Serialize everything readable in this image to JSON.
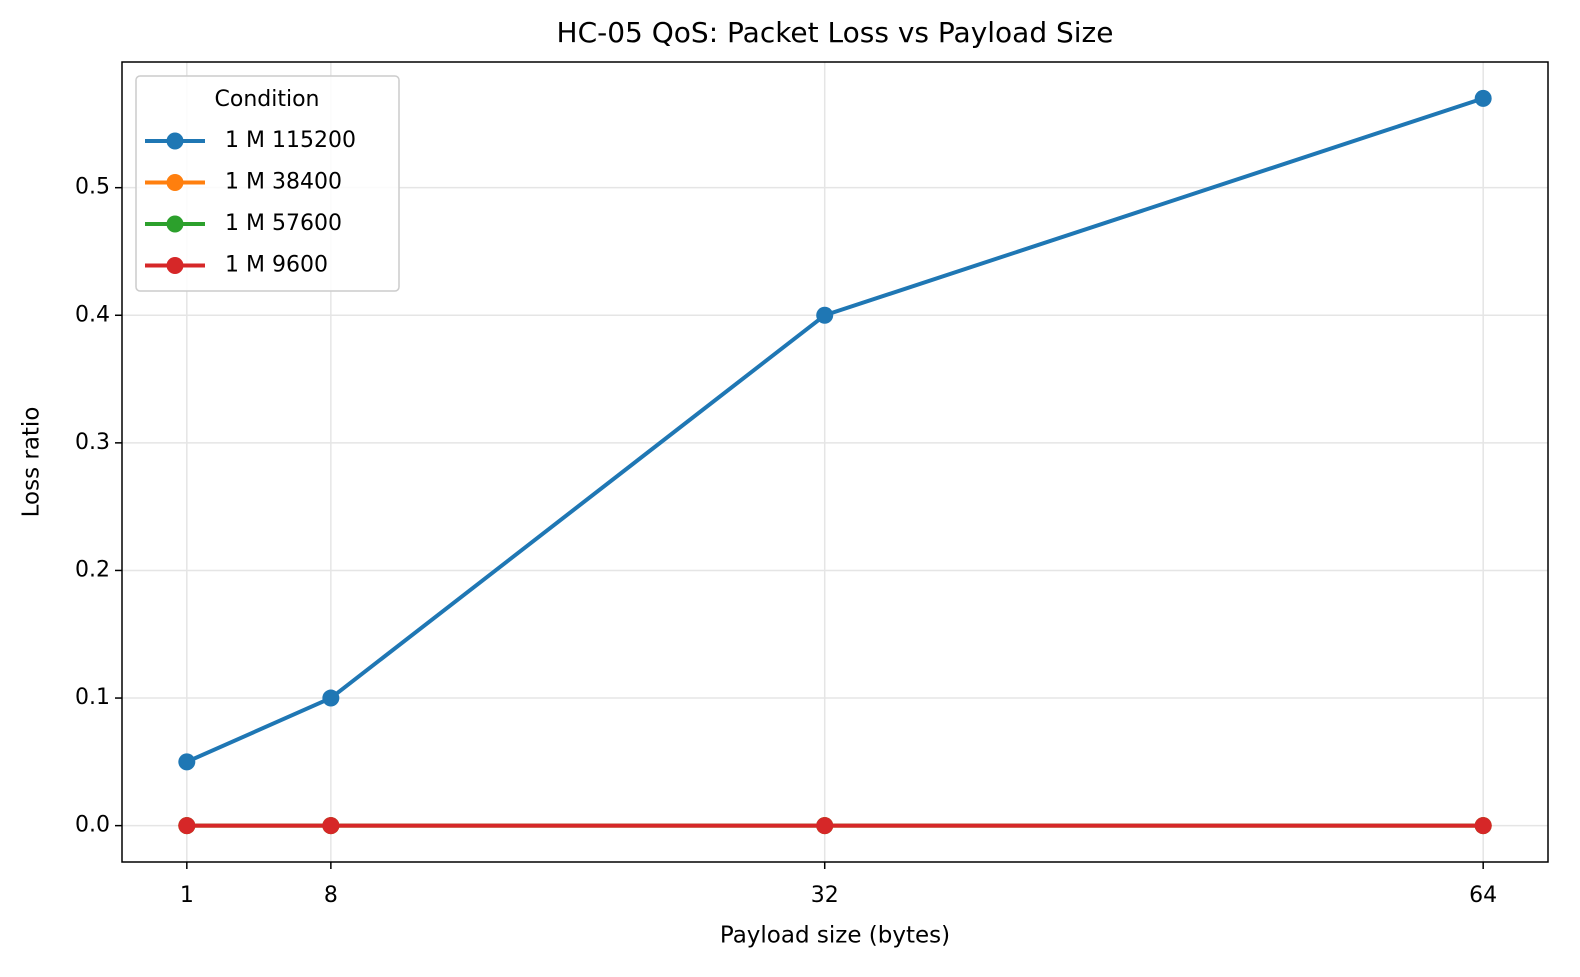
{
  "chart_data": {
    "type": "line",
    "title": "HC-05 QoS: Packet Loss vs Payload Size",
    "x_label": "Payload size (bytes)",
    "y_label": "Loss ratio",
    "x": [
      1,
      8,
      32,
      64
    ],
    "series": [
      {
        "name": "1 M 115200",
        "color": "#1f77b4",
        "values": [
          0.05,
          0.1,
          0.4,
          0.57
        ]
      },
      {
        "name": "1 M 38400",
        "color": "#ff7f0e",
        "values": [
          0,
          0,
          0,
          0
        ]
      },
      {
        "name": "1 M 57600",
        "color": "#2ca02c",
        "values": [
          0,
          0,
          0,
          0
        ]
      },
      {
        "name": "1 M 9600",
        "color": "#d62728",
        "values": [
          0,
          0,
          0,
          0
        ]
      }
    ],
    "xlim": [
      -2.15,
      67.15
    ],
    "xticks": [
      1,
      8,
      32,
      64
    ],
    "ylim": [
      -0.0285,
      0.5985
    ],
    "yticks": [
      {
        "value": 0,
        "label": "0.0"
      },
      0.1,
      0.2,
      0.3,
      0.4,
      0.5
    ],
    "grid": true,
    "legend_title": "Condition",
    "legend_position": "upper left"
  }
}
